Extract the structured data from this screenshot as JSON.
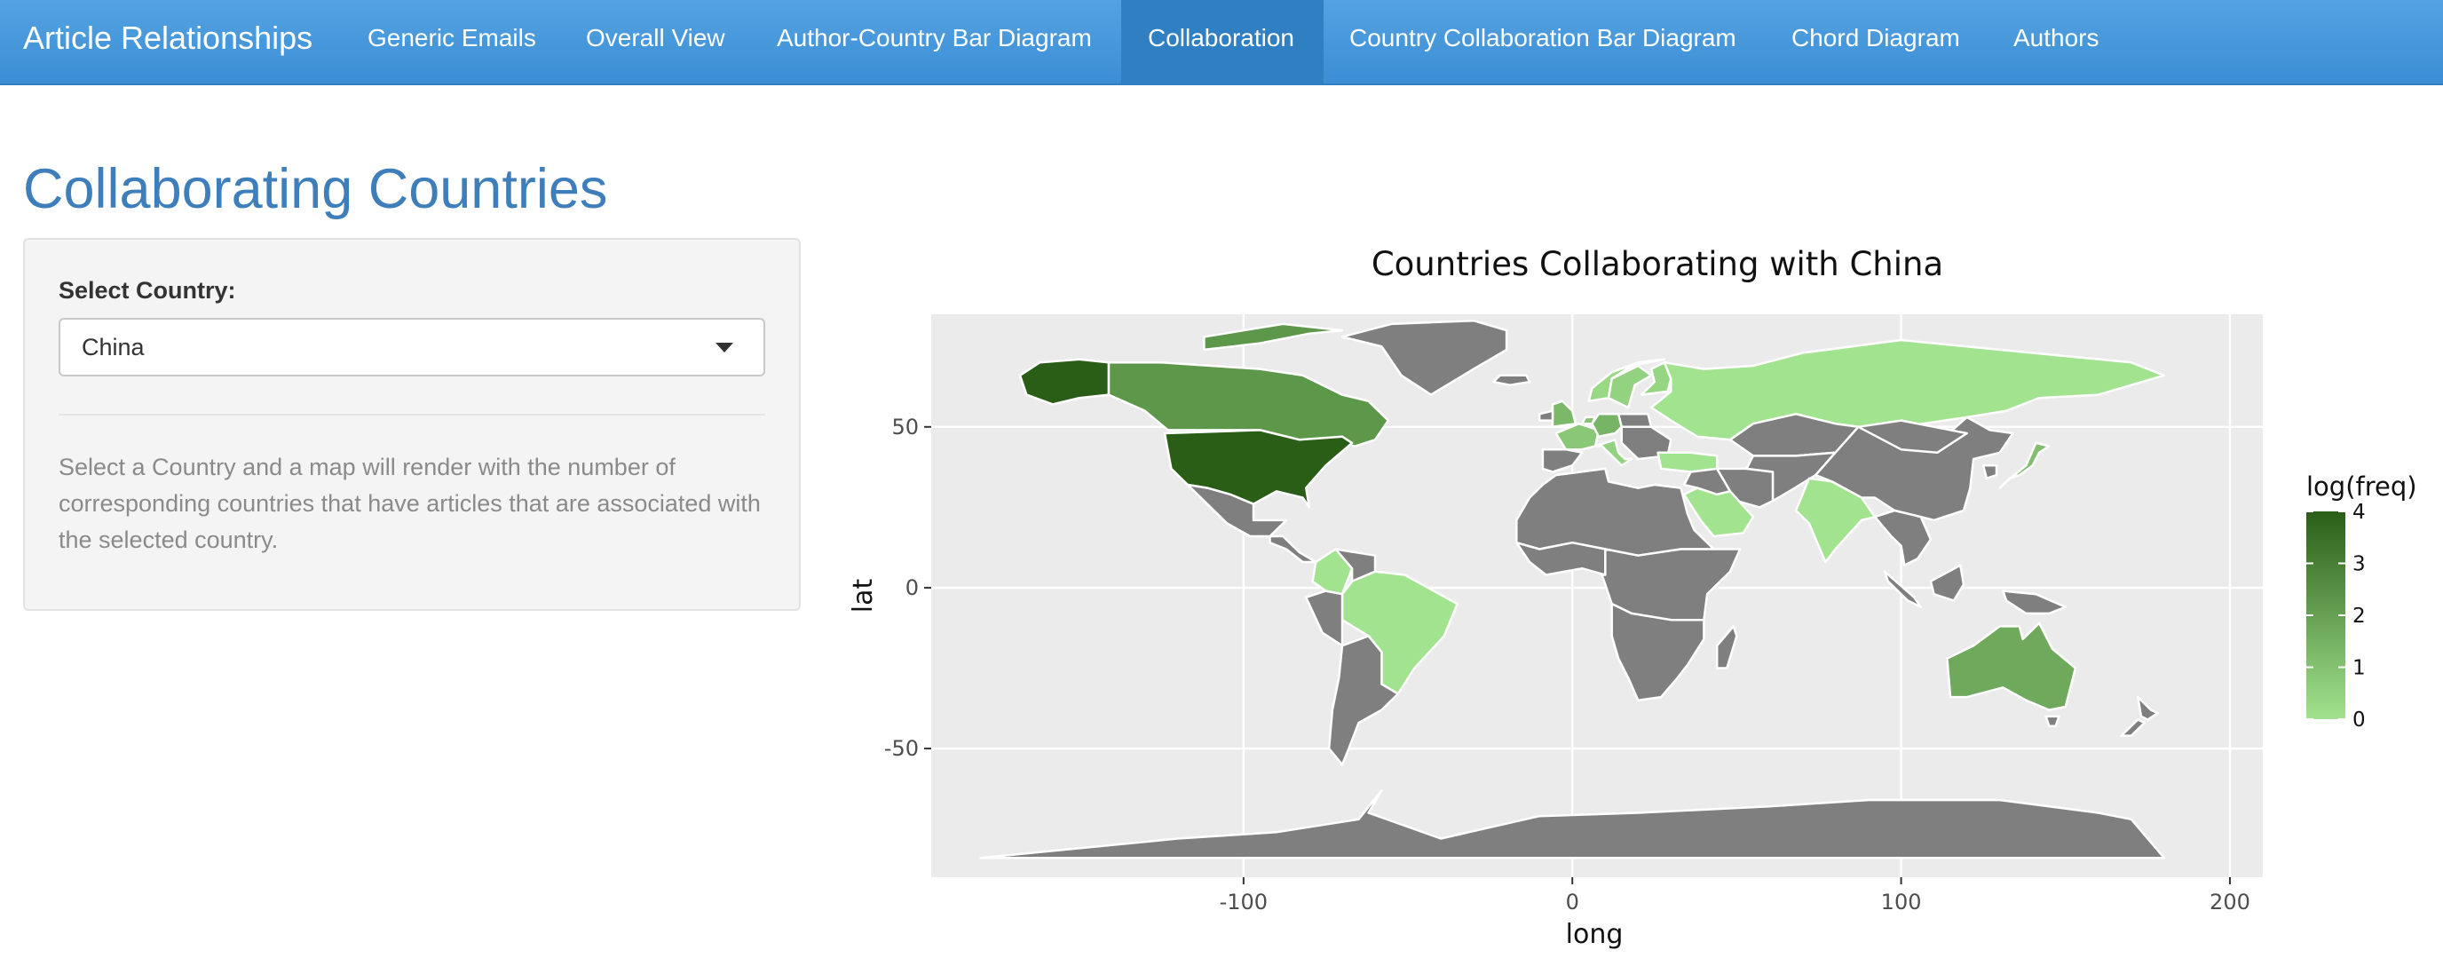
{
  "nav": {
    "brand": "Article Relationships",
    "items": [
      {
        "label": "Generic Emails",
        "active": false
      },
      {
        "label": "Overall View",
        "active": false
      },
      {
        "label": "Author-Country Bar Diagram",
        "active": false
      },
      {
        "label": "Collaboration",
        "active": true
      },
      {
        "label": "Country Collaboration Bar Diagram",
        "active": false
      },
      {
        "label": "Chord Diagram",
        "active": false
      },
      {
        "label": "Authors",
        "active": false
      }
    ]
  },
  "page": {
    "title": "Collaborating Countries"
  },
  "sidebar": {
    "select_label": "Select Country:",
    "selected_country": "China",
    "help_text": "Select a Country and a map will render with the number of corresponding countries that have articles that are associated with the selected country."
  },
  "chart_data": {
    "type": "choropleth-map",
    "title": "Countries Collaborating with China",
    "xlabel": "long",
    "ylabel": "lat",
    "xlim": [
      -195,
      210
    ],
    "ylim": [
      -90,
      85
    ],
    "x_ticks": [
      -100,
      0,
      100,
      200
    ],
    "x_tick_labels": [
      "-100",
      "0",
      "100",
      "200"
    ],
    "y_ticks": [
      -50,
      0,
      50
    ],
    "y_tick_labels": [
      "-50",
      "0",
      "50"
    ],
    "grid": true,
    "legend": {
      "title": "log(freq)",
      "placement": "right",
      "range": [
        0,
        4
      ],
      "ticks": [
        0,
        1,
        2,
        3,
        4
      ],
      "tick_labels": [
        "0",
        "1",
        "2",
        "3",
        "4"
      ],
      "color_low": "#a2e38f",
      "color_high": "#2a5e17"
    },
    "no_data_color": "#7f7f7f",
    "panel_background": "#ebebeb",
    "regions": [
      {
        "name": "USA",
        "value": 4.0
      },
      {
        "name": "Alaska (USA)",
        "value": 4.0
      },
      {
        "name": "Canada",
        "value": 2.3
      },
      {
        "name": "Australia",
        "value": 1.7
      },
      {
        "name": "United Kingdom",
        "value": 1.3
      },
      {
        "name": "Germany",
        "value": 1.4
      },
      {
        "name": "France",
        "value": 0.8
      },
      {
        "name": "Italy",
        "value": 0.5
      },
      {
        "name": "Netherlands",
        "value": 1.0
      },
      {
        "name": "Norway",
        "value": 0.3
      },
      {
        "name": "Sweden",
        "value": 0.5
      },
      {
        "name": "Finland",
        "value": 0.4
      },
      {
        "name": "Japan",
        "value": 1.1
      },
      {
        "name": "Russia",
        "value": 0.0
      },
      {
        "name": "India",
        "value": 0.0
      },
      {
        "name": "Saudi Arabia",
        "value": 0.0
      },
      {
        "name": "Turkey",
        "value": 0.0
      },
      {
        "name": "Brazil",
        "value": 0.0
      },
      {
        "name": "Colombia",
        "value": 0.0
      }
    ]
  }
}
